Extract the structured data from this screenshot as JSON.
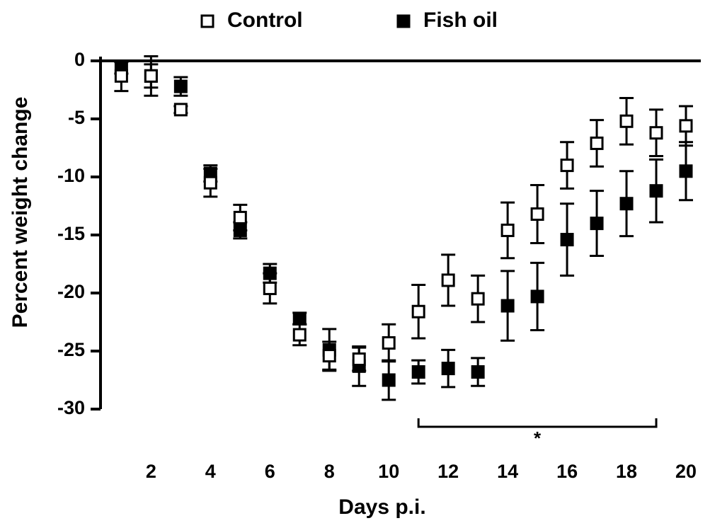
{
  "chart_data": {
    "type": "scatter",
    "xlabel": "Days p.i.",
    "ylabel": "Percent weight change",
    "xlim": [
      0.3,
      20.5
    ],
    "ylim": [
      -30,
      0
    ],
    "xticks": [
      2,
      4,
      6,
      8,
      10,
      12,
      14,
      16,
      18,
      20
    ],
    "yticks": [
      0,
      -5,
      -10,
      -15,
      -20,
      -25,
      -30
    ],
    "legend": "top",
    "x": [
      1,
      2,
      3,
      4,
      5,
      6,
      7,
      8,
      9,
      10,
      11,
      12,
      13,
      14,
      15,
      16,
      17,
      18,
      19,
      20
    ],
    "series": [
      {
        "name": "Fish oil",
        "color": "#000000",
        "marker": "filled-square",
        "values": [
          -0.6,
          -1.3,
          -2.2,
          -9.7,
          -14.6,
          -18.3,
          -22.2,
          -24.9,
          -26.3,
          -27.5,
          -26.8,
          -26.5,
          -26.8,
          -21.1,
          -20.3,
          -15.4,
          -14.0,
          -12.3,
          -11.2,
          -9.5
        ],
        "errors": [
          0.5,
          1.7,
          0.8,
          0.7,
          0.7,
          0.8,
          0.5,
          1.8,
          1.7,
          1.7,
          1.0,
          1.6,
          1.2,
          3.0,
          2.9,
          3.1,
          2.8,
          2.8,
          2.7,
          2.5
        ]
      },
      {
        "name": "Control",
        "color": "#000000",
        "marker": "open-square",
        "values": [
          -1.3,
          -1.3,
          -4.2,
          -10.5,
          -13.5,
          -19.6,
          -23.6,
          -25.4,
          -25.7,
          -24.3,
          -21.6,
          -18.9,
          -20.5,
          -14.6,
          -13.2,
          -9.0,
          -7.1,
          -5.2,
          -6.2,
          -5.6
        ],
        "errors": [
          1.3,
          1.0,
          0.3,
          1.2,
          1.1,
          1.3,
          0.9,
          1.2,
          1.0,
          1.6,
          2.3,
          2.2,
          2.0,
          2.4,
          2.5,
          2.0,
          2.0,
          2.0,
          2.0,
          1.7
        ]
      }
    ],
    "significance": {
      "label": "*",
      "from": 11,
      "to": 19
    }
  }
}
